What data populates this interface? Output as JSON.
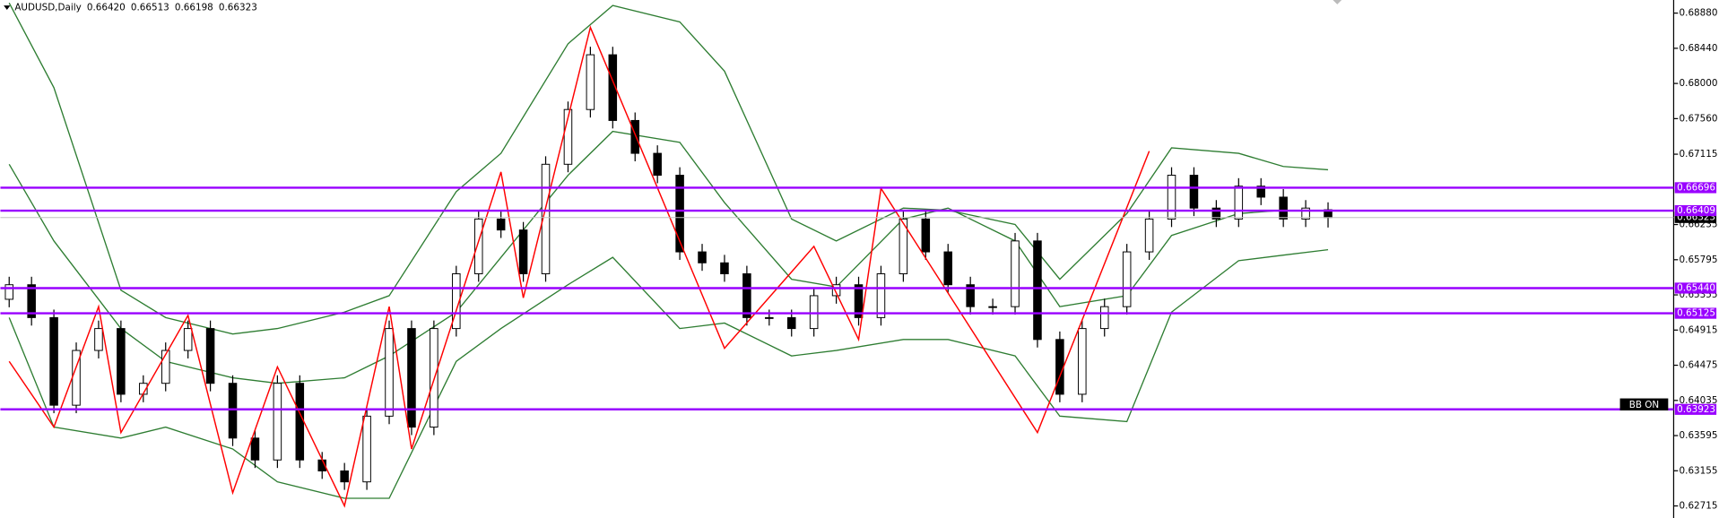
{
  "chart_data": {
    "type": "candlestick",
    "title": "AUDUSD,Daily",
    "header_values": [
      "0.66420",
      "0.66513",
      "0.66198",
      "0.66323"
    ],
    "indicator_label": "BB ON",
    "ylim": [
      0.62564,
      0.69044
    ],
    "yticks": [
      {
        "value": 0.6888,
        "label": "0.68880"
      },
      {
        "value": 0.6844,
        "label": "0.68440"
      },
      {
        "value": 0.68,
        "label": "0.68000"
      },
      {
        "value": 0.6756,
        "label": "0.67560"
      },
      {
        "value": 0.67115,
        "label": "0.67115"
      },
      {
        "value": 0.66235,
        "label": "0.66235"
      },
      {
        "value": 0.65795,
        "label": "0.65795"
      },
      {
        "value": 0.65355,
        "label": "0.65355"
      },
      {
        "value": 0.64915,
        "label": "0.64915"
      },
      {
        "value": 0.64475,
        "label": "0.64475"
      },
      {
        "value": 0.64035,
        "label": "0.64035"
      },
      {
        "value": 0.63595,
        "label": "0.63595"
      },
      {
        "value": 0.63155,
        "label": "0.63155"
      },
      {
        "value": 0.62715,
        "label": "0.62715"
      }
    ],
    "up_color": "#ffffff",
    "down_color": "#000000",
    "open": [
      0.653,
      0.65482,
      0.65071,
      0.63975,
      0.6466,
      0.64934,
      0.64112,
      0.64249,
      0.6466,
      0.64934,
      0.64249,
      0.63564,
      0.6329,
      0.64249,
      0.6329,
      0.63153,
      0.63016,
      0.63838,
      0.64934,
      0.63701,
      0.64934,
      0.65619,
      0.66304,
      0.66167,
      0.65619,
      0.66989,
      0.67674,
      0.68359,
      0.67537,
      0.67126,
      0.66852,
      0.65893,
      0.65756,
      0.65619,
      0.65071,
      0.65071,
      0.64934,
      0.65345,
      0.65482,
      0.65071,
      0.65619,
      0.66304,
      0.65893,
      0.65482,
      0.65208,
      0.65208,
      0.6603,
      0.64797,
      0.64112,
      0.64934,
      0.65208,
      0.65893,
      0.66304,
      0.66852,
      0.66441,
      0.66304,
      0.66715,
      0.66578,
      0.66304,
      0.6642
    ],
    "high": [
      0.65582,
      0.65582,
      0.65171,
      0.6476,
      0.65034,
      0.65034,
      0.64349,
      0.6476,
      0.65034,
      0.65034,
      0.64349,
      0.63664,
      0.64349,
      0.64349,
      0.6339,
      0.63253,
      0.63938,
      0.65034,
      0.65034,
      0.65034,
      0.65719,
      0.66404,
      0.66404,
      0.66267,
      0.67089,
      0.67774,
      0.68459,
      0.68459,
      0.67637,
      0.67226,
      0.66952,
      0.65993,
      0.65856,
      0.65719,
      0.65171,
      0.65171,
      0.65445,
      0.65582,
      0.65582,
      0.65719,
      0.66404,
      0.66404,
      0.65993,
      0.65582,
      0.65308,
      0.6613,
      0.6613,
      0.64897,
      0.65034,
      0.65308,
      0.65993,
      0.66404,
      0.66952,
      0.66952,
      0.66541,
      0.66815,
      0.66815,
      0.66678,
      0.66541,
      0.66513
    ],
    "low": [
      0.652,
      0.64971,
      0.63875,
      0.63875,
      0.6456,
      0.64012,
      0.64012,
      0.64149,
      0.6456,
      0.64149,
      0.63464,
      0.6319,
      0.6319,
      0.6319,
      0.63053,
      0.62916,
      0.62916,
      0.63738,
      0.63601,
      0.63601,
      0.64834,
      0.65519,
      0.66067,
      0.65519,
      0.65519,
      0.66889,
      0.67574,
      0.67437,
      0.67026,
      0.66752,
      0.65793,
      0.65656,
      0.65519,
      0.64971,
      0.64971,
      0.64834,
      0.64834,
      0.65245,
      0.64971,
      0.64971,
      0.65519,
      0.65793,
      0.65382,
      0.65108,
      0.65108,
      0.65108,
      0.64697,
      0.64012,
      0.64012,
      0.64834,
      0.65108,
      0.65793,
      0.66204,
      0.66341,
      0.66204,
      0.66204,
      0.66478,
      0.66204,
      0.66204,
      0.66198
    ],
    "close": [
      0.65482,
      0.65071,
      0.63975,
      0.6466,
      0.64934,
      0.64112,
      0.64249,
      0.6466,
      0.64934,
      0.64249,
      0.63564,
      0.6329,
      0.64249,
      0.6329,
      0.63153,
      0.63016,
      0.63838,
      0.64934,
      0.63701,
      0.64934,
      0.65619,
      0.66304,
      0.66167,
      0.65619,
      0.66989,
      0.67674,
      0.68359,
      0.67537,
      0.67126,
      0.66852,
      0.65893,
      0.65756,
      0.65619,
      0.65071,
      0.65071,
      0.64934,
      0.65345,
      0.65482,
      0.65071,
      0.65619,
      0.66304,
      0.65893,
      0.65482,
      0.65208,
      0.65208,
      0.6603,
      0.64797,
      0.64112,
      0.64934,
      0.65208,
      0.65893,
      0.66304,
      0.66852,
      0.66441,
      0.66304,
      0.66715,
      0.66578,
      0.66304,
      0.66441,
      0.66323
    ],
    "bands": {
      "color": "#2e7d32",
      "x": [
        0,
        2,
        5,
        7,
        10,
        12,
        15,
        17,
        20,
        22,
        25,
        27,
        30,
        32,
        35,
        37,
        40,
        42,
        45,
        47,
        50,
        52,
        55,
        57,
        59
      ],
      "upper": [
        0.69007,
        0.67948,
        0.65414,
        0.65071,
        0.64866,
        0.64934,
        0.6514,
        0.65345,
        0.66647,
        0.67126,
        0.68496,
        0.68975,
        0.6877,
        0.68154,
        0.66304,
        0.6603,
        0.66441,
        0.66414,
        0.66236,
        0.65551,
        0.66373,
        0.67195,
        0.67126,
        0.66962,
        0.66921
      ],
      "middle": [
        0.66989,
        0.6603,
        0.64934,
        0.64523,
        0.64317,
        0.64249,
        0.64317,
        0.64592,
        0.6514,
        0.65825,
        0.66852,
        0.674,
        0.67263,
        0.66509,
        0.65551,
        0.65455,
        0.66304,
        0.66441,
        0.6603,
        0.65208,
        0.65345,
        0.66099,
        0.66373,
        0.66414,
        0.66414
      ],
      "lower": [
        0.65071,
        0.63701,
        0.63564,
        0.63701,
        0.63427,
        0.63016,
        0.62811,
        0.62811,
        0.64523,
        0.64934,
        0.65482,
        0.65825,
        0.64934,
        0.65003,
        0.64592,
        0.6466,
        0.64797,
        0.64797,
        0.64592,
        0.63838,
        0.6377,
        0.6514,
        0.65784,
        0.65852,
        0.65921
      ]
    },
    "zigzag": {
      "color": "#ff0000",
      "x": [
        0,
        2,
        4,
        5,
        8,
        10,
        12,
        15,
        17,
        18,
        22,
        23,
        26,
        32,
        36,
        38,
        39,
        46,
        51
      ],
      "values": [
        0.64523,
        0.63701,
        0.65208,
        0.63633,
        0.65099,
        0.62879,
        0.64454,
        0.62715,
        0.65208,
        0.63427,
        0.66893,
        0.65318,
        0.68701,
        0.64687,
        0.65962,
        0.64797,
        0.66688,
        0.63633,
        0.67153
      ]
    },
    "level_color": "#9900ff",
    "levels": [
      {
        "value": 0.66696,
        "label": "0.66696"
      },
      {
        "value": 0.66409,
        "label": "0.66409"
      },
      {
        "value": 0.6544,
        "label": "0.65440"
      },
      {
        "value": 0.65125,
        "label": "0.65125"
      },
      {
        "value": 0.63923,
        "label": "0.63923"
      }
    ],
    "current_price": {
      "value": 0.66323,
      "label": "0.66323"
    }
  }
}
